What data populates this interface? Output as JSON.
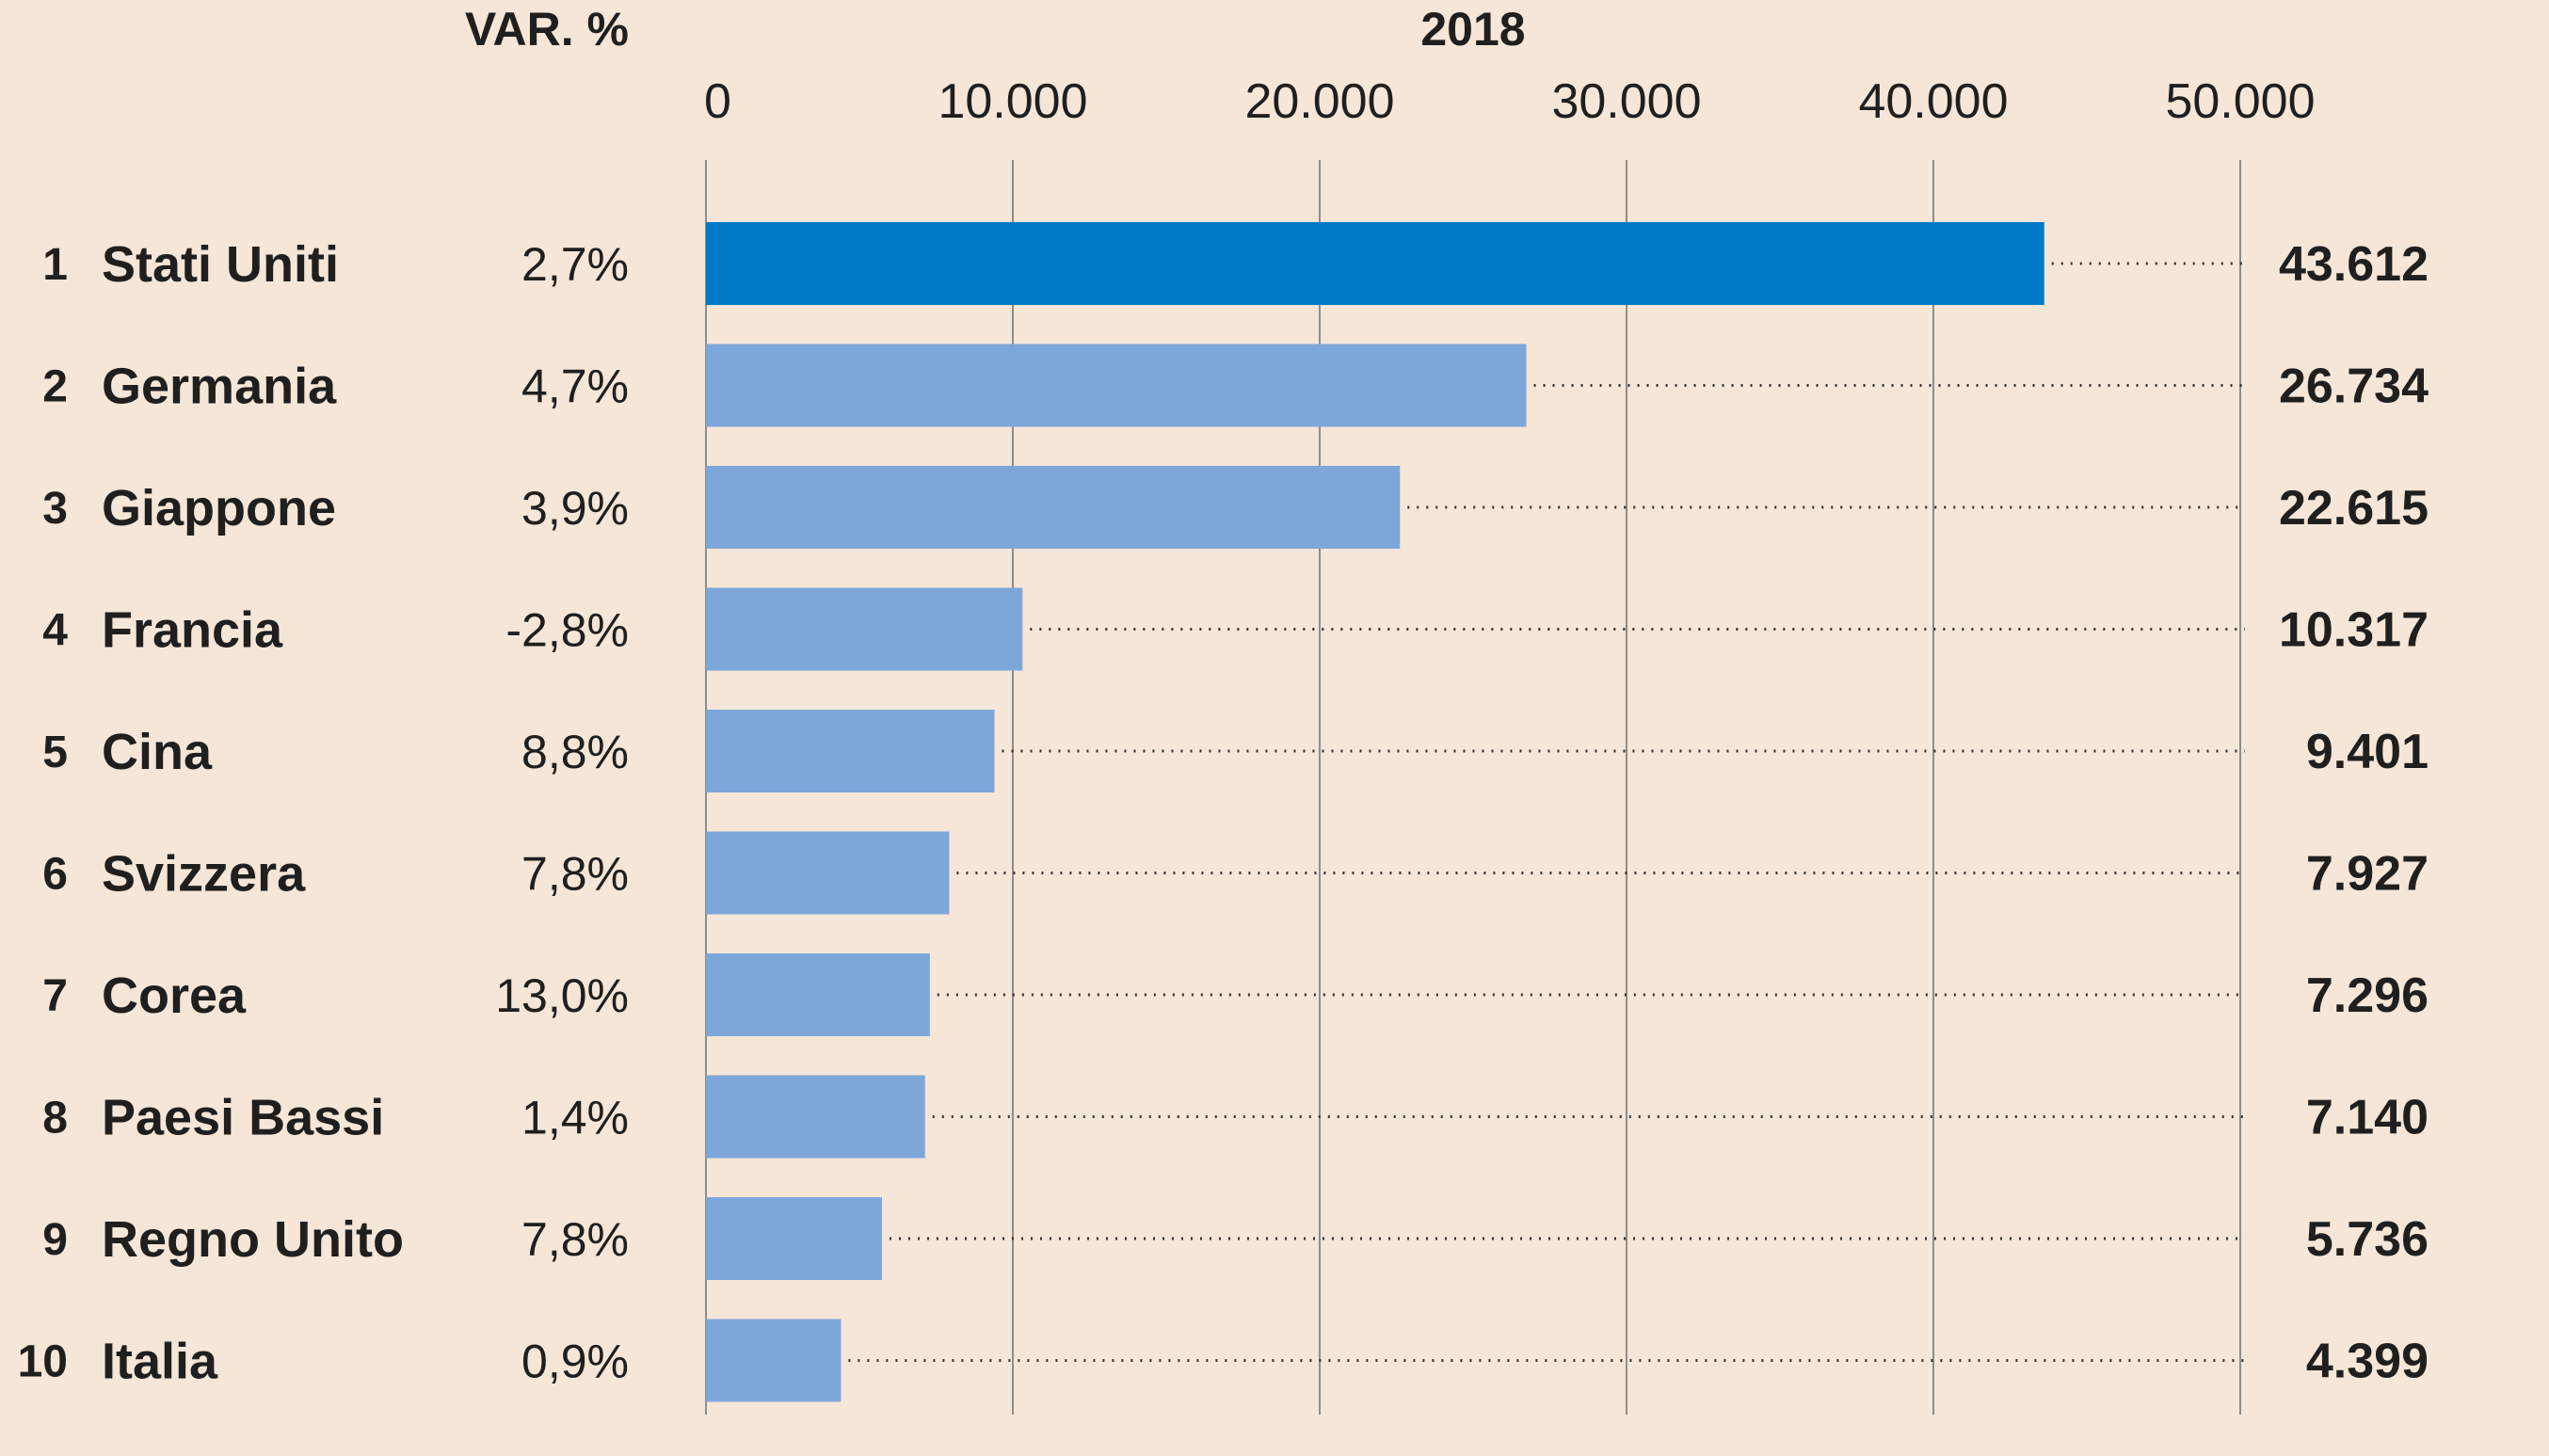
{
  "chart_data": {
    "type": "bar",
    "orientation": "horizontal",
    "title": "2018",
    "var_header": "VAR. %",
    "ticks": [
      "0",
      "10.000",
      "20.000",
      "30.000",
      "40.000",
      "50.000"
    ],
    "xlim": [
      0,
      50000
    ],
    "grid": true,
    "rows": [
      {
        "rank": "1",
        "country": "Stati Uniti",
        "var": "2,7%",
        "value": 43612,
        "label": "43.612",
        "color": "#0079c7"
      },
      {
        "rank": "2",
        "country": "Germania",
        "var": "4,7%",
        "value": 26734,
        "label": "26.734",
        "color": "#7da7d9"
      },
      {
        "rank": "3",
        "country": "Giappone",
        "var": "3,9%",
        "value": 22615,
        "label": "22.615",
        "color": "#7da7d9"
      },
      {
        "rank": "4",
        "country": "Francia",
        "var": "-2,8%",
        "value": 10317,
        "label": "10.317",
        "color": "#7da7d9"
      },
      {
        "rank": "5",
        "country": "Cina",
        "var": "8,8%",
        "value": 9401,
        "label": "9.401",
        "color": "#7da7d9"
      },
      {
        "rank": "6",
        "country": "Svizzera",
        "var": "7,8%",
        "value": 7927,
        "label": "7.927",
        "color": "#7da7d9"
      },
      {
        "rank": "7",
        "country": "Corea",
        "var": "13,0%",
        "value": 7296,
        "label": "7.296",
        "color": "#7da7d9"
      },
      {
        "rank": "8",
        "country": "Paesi Bassi",
        "var": "1,4%",
        "value": 7140,
        "label": "7.140",
        "color": "#7da7d9"
      },
      {
        "rank": "9",
        "country": "Regno Unito",
        "var": "7,8%",
        "value": 5736,
        "label": "5.736",
        "color": "#7da7d9"
      },
      {
        "rank": "10",
        "country": "Italia",
        "var": "0,9%",
        "value": 4399,
        "label": "4.399",
        "color": "#7da7d9"
      }
    ]
  }
}
